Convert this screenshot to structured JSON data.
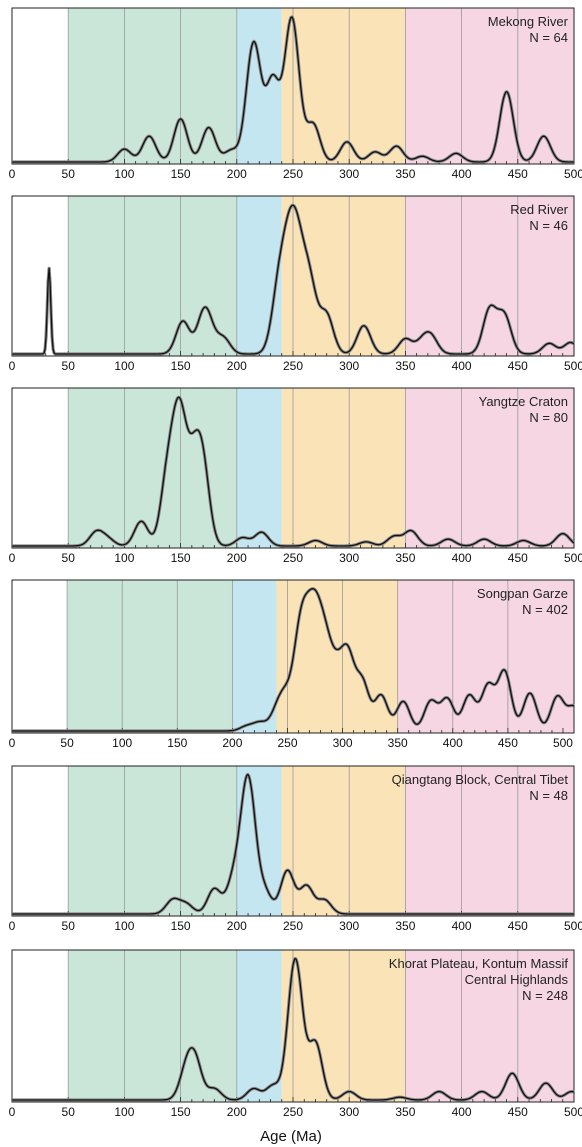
{
  "figure": {
    "xlabel": "Age (Ma)",
    "bands": [
      {
        "from": 50,
        "to": 200,
        "color": "#c9e6d8"
      },
      {
        "from": 200,
        "to": 240,
        "color": "#c4e6f0"
      },
      {
        "from": 240,
        "to": 350,
        "color": "#fbe3b8"
      },
      {
        "from": 350,
        "to": 520,
        "color": "#f7d6e3"
      }
    ]
  },
  "chart_data": [
    {
      "type": "line",
      "labels": [
        "Mekong River",
        "N = 64"
      ],
      "xlim": [
        0,
        500
      ],
      "ticks": [
        0,
        50,
        100,
        150,
        200,
        250,
        300,
        350,
        400,
        450,
        500
      ],
      "gridlines": [
        50,
        100,
        150,
        200,
        250,
        300,
        350,
        400,
        450
      ],
      "peaks": [
        [
          100,
          0.09
        ],
        [
          122,
          0.18
        ],
        [
          150,
          0.3
        ],
        [
          175,
          0.24
        ],
        [
          195,
          0.08
        ],
        [
          215,
          0.83
        ],
        [
          232,
          0.55
        ],
        [
          249,
          1.0
        ],
        [
          268,
          0.26
        ],
        [
          298,
          0.14
        ],
        [
          323,
          0.07
        ],
        [
          342,
          0.11
        ],
        [
          365,
          0.04
        ],
        [
          395,
          0.06
        ],
        [
          440,
          0.49
        ],
        [
          473,
          0.18
        ]
      ]
    },
    {
      "type": "line",
      "labels": [
        "Red River",
        "N = 46"
      ],
      "xlim": [
        0,
        500
      ],
      "ticks": [
        0,
        50,
        100,
        150,
        200,
        250,
        300,
        350,
        400,
        450,
        500
      ],
      "gridlines": [
        50,
        100,
        150,
        200,
        250,
        300,
        350,
        400,
        450
      ],
      "peaks": [
        [
          33,
          0.97
        ],
        [
          152,
          0.37
        ],
        [
          170,
          0.35
        ],
        [
          175,
          0.22
        ],
        [
          188,
          0.18
        ],
        [
          238,
          0.76
        ],
        [
          248,
          1.0
        ],
        [
          255,
          0.73
        ],
        [
          265,
          0.72
        ],
        [
          280,
          0.43
        ],
        [
          313,
          0.32
        ],
        [
          350,
          0.17
        ],
        [
          365,
          0.13
        ],
        [
          373,
          0.18
        ],
        [
          425,
          0.5
        ],
        [
          438,
          0.43
        ],
        [
          478,
          0.12
        ],
        [
          497,
          0.13
        ]
      ]
    },
    {
      "type": "line",
      "labels": [
        "Yangtze Craton",
        "N = 80"
      ],
      "xlim": [
        0,
        500
      ],
      "ticks": [
        0,
        50,
        100,
        150,
        200,
        250,
        300,
        350,
        400,
        450,
        500
      ],
      "gridlines": [
        50,
        100,
        150,
        200,
        250,
        300,
        350,
        400,
        450
      ],
      "peaks": [
        [
          75,
          0.1
        ],
        [
          85,
          0.05
        ],
        [
          115,
          0.18
        ],
        [
          138,
          0.45
        ],
        [
          149,
          0.95
        ],
        [
          162,
          0.49
        ],
        [
          170,
          0.52
        ],
        [
          205,
          0.06
        ],
        [
          222,
          0.1
        ],
        [
          270,
          0.04
        ],
        [
          315,
          0.03
        ],
        [
          340,
          0.07
        ],
        [
          355,
          0.11
        ],
        [
          388,
          0.05
        ],
        [
          420,
          0.05
        ],
        [
          455,
          0.04
        ],
        [
          490,
          0.09
        ]
      ]
    },
    {
      "type": "line",
      "labels": [
        "Songpan Garze",
        "N = 402"
      ],
      "xlim": [
        0,
        510
      ],
      "ticks": [
        0,
        50,
        100,
        150,
        200,
        250,
        300,
        350,
        400,
        450,
        500
      ],
      "gridlines": [
        50,
        100,
        150,
        200,
        250,
        300,
        350,
        400,
        450
      ],
      "peaks": [
        [
          213,
          0.04
        ],
        [
          225,
          0.07
        ],
        [
          240,
          0.14
        ],
        [
          248,
          0.25
        ],
        [
          260,
          0.55
        ],
        [
          266,
          0.47
        ],
        [
          275,
          0.88
        ],
        [
          285,
          0.55
        ],
        [
          295,
          0.4
        ],
        [
          305,
          0.58
        ],
        [
          318,
          0.4
        ],
        [
          335,
          0.3
        ],
        [
          355,
          0.25
        ],
        [
          380,
          0.25
        ],
        [
          395,
          0.27
        ],
        [
          415,
          0.3
        ],
        [
          432,
          0.38
        ],
        [
          447,
          0.5
        ],
        [
          470,
          0.32
        ],
        [
          495,
          0.29
        ],
        [
          510,
          0.2
        ]
      ]
    },
    {
      "type": "line",
      "labels": [
        "Qiangtang Block, Central Tibet",
        "N = 48"
      ],
      "xlim": [
        0,
        500
      ],
      "ticks": [
        0,
        50,
        100,
        150,
        200,
        250,
        300,
        350,
        400,
        450,
        500
      ],
      "gridlines": [
        50,
        100,
        150,
        200,
        250,
        300,
        350,
        400,
        450
      ],
      "peaks": [
        [
          143,
          0.1
        ],
        [
          155,
          0.07
        ],
        [
          180,
          0.18
        ],
        [
          197,
          0.23
        ],
        [
          210,
          0.97
        ],
        [
          225,
          0.15
        ],
        [
          245,
          0.31
        ],
        [
          262,
          0.2
        ],
        [
          278,
          0.1
        ]
      ]
    },
    {
      "type": "line",
      "labels": [
        "Khorat Plateau, Kontum Massif",
        "Central Highlands",
        "N = 248"
      ],
      "xlim": [
        0,
        500
      ],
      "ticks": [
        0,
        50,
        100,
        150,
        200,
        250,
        300,
        350,
        400,
        450,
        500
      ],
      "gridlines": [
        50,
        100,
        150,
        200,
        250,
        300,
        350,
        400,
        450
      ],
      "peaks": [
        [
          155,
          0.2
        ],
        [
          163,
          0.26
        ],
        [
          180,
          0.08
        ],
        [
          215,
          0.08
        ],
        [
          232,
          0.1
        ],
        [
          252,
          1.0
        ],
        [
          270,
          0.4
        ],
        [
          300,
          0.06
        ],
        [
          345,
          0.02
        ],
        [
          380,
          0.06
        ],
        [
          418,
          0.06
        ],
        [
          445,
          0.19
        ],
        [
          475,
          0.12
        ],
        [
          498,
          0.06
        ]
      ]
    }
  ]
}
